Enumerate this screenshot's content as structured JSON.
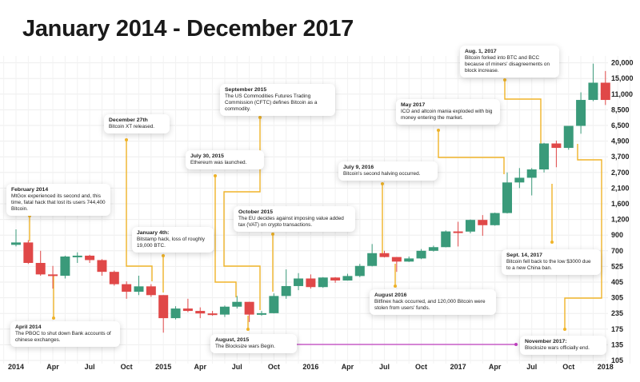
{
  "title": "January 2014 - December 2017",
  "chart_data": {
    "type": "candlestick",
    "title": "January 2014 - December 2017",
    "y_scale": "log-like (non-uniform ticks, equally spaced)",
    "y_ticks": [
      105,
      135,
      175,
      235,
      305,
      405,
      525,
      700,
      900,
      1200,
      1600,
      2100,
      2700,
      3700,
      4900,
      6500,
      8500,
      11000,
      15000,
      20000
    ],
    "y_tick_labels": [
      "105",
      "135",
      "175",
      "235",
      "305",
      "405",
      "525",
      "700",
      "900",
      "1,200",
      "1,600",
      "2,100",
      "2,700",
      "3,700",
      "4,900",
      "6,500",
      "8,500",
      "11,000",
      "15,000",
      "20,000"
    ],
    "x_tick_labels": [
      "2014",
      "Apr",
      "Jul",
      "Oct",
      "2015",
      "Apr",
      "Jul",
      "Oct",
      "2016",
      "Apr",
      "Jul",
      "Oct",
      "2017",
      "Apr",
      "Jul",
      "Oct",
      "2018"
    ],
    "grid": true,
    "colors": {
      "up": "#3a9a7a",
      "down": "#e04848",
      "connector": "#f0b429",
      "blocksize": "#c040c0"
    },
    "candles": [
      {
        "m": "2014-01",
        "o": 770,
        "h": 1000,
        "l": 750,
        "c": 800
      },
      {
        "m": "2014-02",
        "o": 800,
        "h": 830,
        "l": 550,
        "c": 560
      },
      {
        "m": "2014-03",
        "o": 560,
        "h": 700,
        "l": 450,
        "c": 460
      },
      {
        "m": "2014-04",
        "o": 460,
        "h": 530,
        "l": 360,
        "c": 450
      },
      {
        "m": "2014-05",
        "o": 450,
        "h": 640,
        "l": 430,
        "c": 630
      },
      {
        "m": "2014-06",
        "o": 630,
        "h": 680,
        "l": 560,
        "c": 640
      },
      {
        "m": "2014-07",
        "o": 640,
        "h": 650,
        "l": 560,
        "c": 590
      },
      {
        "m": "2014-08",
        "o": 590,
        "h": 600,
        "l": 450,
        "c": 480
      },
      {
        "m": "2014-09",
        "o": 480,
        "h": 490,
        "l": 380,
        "c": 390
      },
      {
        "m": "2014-10",
        "o": 390,
        "h": 410,
        "l": 300,
        "c": 340
      },
      {
        "m": "2014-11",
        "o": 340,
        "h": 450,
        "l": 320,
        "c": 375
      },
      {
        "m": "2014-12",
        "o": 375,
        "h": 390,
        "l": 310,
        "c": 320
      },
      {
        "m": "2015-01",
        "o": 320,
        "h": 320,
        "l": 165,
        "c": 215
      },
      {
        "m": "2015-02",
        "o": 215,
        "h": 265,
        "l": 210,
        "c": 255
      },
      {
        "m": "2015-03",
        "o": 255,
        "h": 300,
        "l": 240,
        "c": 245
      },
      {
        "m": "2015-04",
        "o": 245,
        "h": 260,
        "l": 215,
        "c": 235
      },
      {
        "m": "2015-05",
        "o": 235,
        "h": 245,
        "l": 225,
        "c": 230
      },
      {
        "m": "2015-06",
        "o": 230,
        "h": 268,
        "l": 220,
        "c": 263
      },
      {
        "m": "2015-07",
        "o": 263,
        "h": 315,
        "l": 255,
        "c": 285
      },
      {
        "m": "2015-08",
        "o": 285,
        "h": 285,
        "l": 200,
        "c": 230
      },
      {
        "m": "2015-09",
        "o": 230,
        "h": 245,
        "l": 225,
        "c": 236
      },
      {
        "m": "2015-10",
        "o": 236,
        "h": 330,
        "l": 235,
        "c": 315
      },
      {
        "m": "2015-11",
        "o": 315,
        "h": 500,
        "l": 300,
        "c": 377
      },
      {
        "m": "2015-12",
        "o": 377,
        "h": 470,
        "l": 350,
        "c": 430
      },
      {
        "m": "2016-01",
        "o": 430,
        "h": 460,
        "l": 360,
        "c": 370
      },
      {
        "m": "2016-02",
        "o": 370,
        "h": 440,
        "l": 365,
        "c": 437
      },
      {
        "m": "2016-03",
        "o": 437,
        "h": 440,
        "l": 400,
        "c": 416
      },
      {
        "m": "2016-04",
        "o": 416,
        "h": 465,
        "l": 415,
        "c": 448
      },
      {
        "m": "2016-05",
        "o": 448,
        "h": 550,
        "l": 440,
        "c": 530
      },
      {
        "m": "2016-06",
        "o": 530,
        "h": 780,
        "l": 525,
        "c": 670
      },
      {
        "m": "2016-07",
        "o": 670,
        "h": 700,
        "l": 620,
        "c": 624
      },
      {
        "m": "2016-08",
        "o": 624,
        "h": 625,
        "l": 480,
        "c": 574
      },
      {
        "m": "2016-09",
        "o": 574,
        "h": 630,
        "l": 570,
        "c": 608
      },
      {
        "m": "2016-10",
        "o": 608,
        "h": 720,
        "l": 600,
        "c": 700
      },
      {
        "m": "2016-11",
        "o": 700,
        "h": 760,
        "l": 690,
        "c": 742
      },
      {
        "m": "2016-12",
        "o": 742,
        "h": 980,
        "l": 740,
        "c": 963
      },
      {
        "m": "2017-01",
        "o": 963,
        "h": 1150,
        "l": 750,
        "c": 960
      },
      {
        "m": "2017-02",
        "o": 960,
        "h": 1200,
        "l": 930,
        "c": 1190
      },
      {
        "m": "2017-03",
        "o": 1190,
        "h": 1300,
        "l": 890,
        "c": 1080
      },
      {
        "m": "2017-04",
        "o": 1080,
        "h": 1360,
        "l": 1070,
        "c": 1350
      },
      {
        "m": "2017-05",
        "o": 1350,
        "h": 2700,
        "l": 1340,
        "c": 2300
      },
      {
        "m": "2017-06",
        "o": 2300,
        "h": 2950,
        "l": 2100,
        "c": 2480
      },
      {
        "m": "2017-07",
        "o": 2480,
        "h": 2950,
        "l": 1850,
        "c": 2870
      },
      {
        "m": "2017-08",
        "o": 2870,
        "h": 4750,
        "l": 2700,
        "c": 4700
      },
      {
        "m": "2017-09",
        "o": 4700,
        "h": 4950,
        "l": 3000,
        "c": 4340
      },
      {
        "m": "2017-10",
        "o": 4340,
        "h": 6450,
        "l": 4200,
        "c": 6450
      },
      {
        "m": "2017-11",
        "o": 6450,
        "h": 11400,
        "l": 5600,
        "c": 10000
      },
      {
        "m": "2017-12",
        "o": 10000,
        "h": 19700,
        "l": 9800,
        "c": 13800
      },
      {
        "m": "2018-01",
        "o": 13800,
        "h": 17200,
        "l": 9200,
        "c": 10000
      }
    ],
    "annotations": [
      {
        "id": "feb2014",
        "date": "February 2014",
        "text": "MtGox experienced its second and, this time, fatal hack that lost its users 744,400 Bitcoin."
      },
      {
        "id": "apr2014",
        "date": "April 2014",
        "text": "The PBOC to shut down Bank accounts of chinese exchanges."
      },
      {
        "id": "dec27",
        "date": "December 27th",
        "text": "Bitcoin XT released."
      },
      {
        "id": "jan4",
        "date": "January 4th:",
        "text": "Bitstamp hack, loss of roughly 19,000 BTC."
      },
      {
        "id": "jul30",
        "date": "July 30, 2015",
        "text": "Ethereum was launched."
      },
      {
        "id": "sep2015",
        "date": "September 2015",
        "text": "The US Commodities Futures Trading Commission (CFTC) defines Bitcoin as a commodity."
      },
      {
        "id": "oct2015",
        "date": "October 2015",
        "text": "The EU decides against imposing value added tax (VAT) on crypto transactions."
      },
      {
        "id": "aug2015",
        "date": "August, 2015",
        "text": "The Blocksize wars Begin."
      },
      {
        "id": "jul2016",
        "date": "July 9, 2016",
        "text": "Bitcoin's second halving occurred."
      },
      {
        "id": "aug2016",
        "date": "August 2016",
        "text": "Bitfinex hack occurred, and 120,000 Bitcoin were stolen from users' funds."
      },
      {
        "id": "may2017",
        "date": "May 2017",
        "text": "ICO and altcoin mania exploded with big money entering the market."
      },
      {
        "id": "aug2017",
        "date": "Aug. 1, 2017",
        "text": "Bitcoin forked into BTC and BCC because of miners' disagreements on block increase."
      },
      {
        "id": "sep2017",
        "date": "Sept. 14, 2017",
        "text": "Bitcoin fell back to the low $3000 due to a new China ban."
      },
      {
        "id": "nov2017",
        "date": "November 2017:",
        "text": "Blocksize wars officially end."
      }
    ]
  }
}
